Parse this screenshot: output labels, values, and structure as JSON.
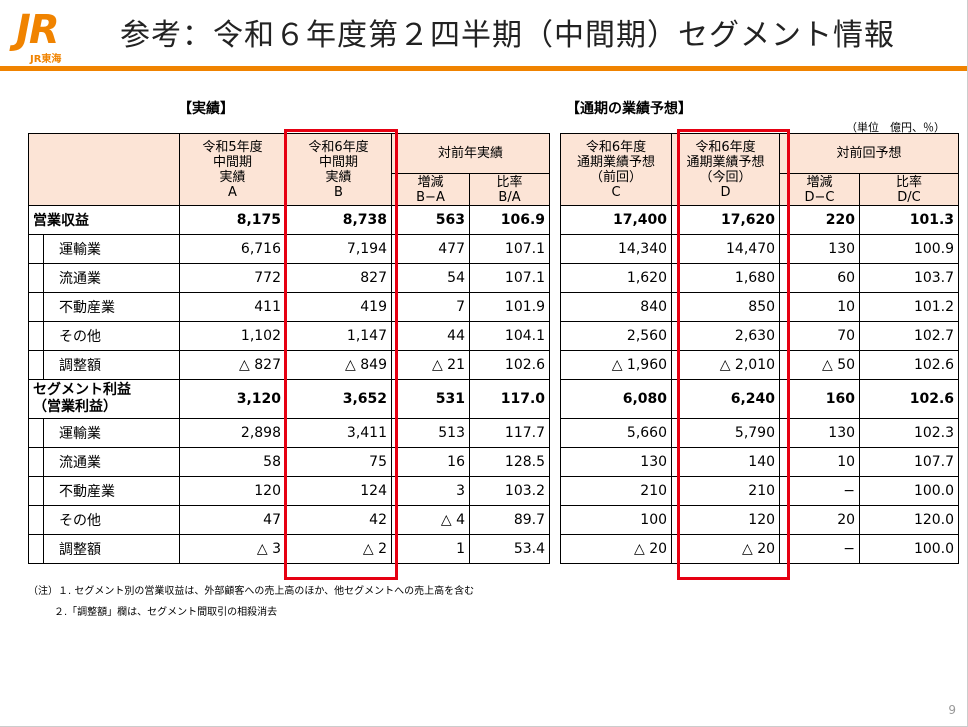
{
  "header": {
    "logo_text": "JR",
    "logo_sub": "JR東海",
    "title": "参考：令和６年度第２四半期（中間期）セグメント情報"
  },
  "actual": {
    "label": "【実績】",
    "head": {
      "col1": "令和5年度\n中間期\n実績\nA",
      "col2": "令和6年度\n中間期\n実績\nB",
      "yoy": "対前年実績",
      "diff": "増減\nB−A",
      "ratio": "比率\nB/A"
    }
  },
  "forecast": {
    "label": "【通期の業績予想】",
    "unit": "（単位　億円、％）",
    "head": {
      "col1": "令和6年度\n通期業績予想\n（前回）\nC",
      "col2": "令和6年度\n通期業績予想\n（今回）\nD",
      "vs": "対前回予想",
      "diff": "増減\nD−C",
      "ratio": "比率\nD/C"
    }
  },
  "rows": [
    {
      "label": "営業収益",
      "bold": true,
      "a": "8,175",
      "b": "8,738",
      "ba": "563",
      "bar": "106.9",
      "c": "17,400",
      "d": "17,620",
      "dc": "220",
      "dcr": "101.3"
    },
    {
      "label": "運輸業",
      "a": "6,716",
      "b": "7,194",
      "ba": "477",
      "bar": "107.1",
      "c": "14,340",
      "d": "14,470",
      "dc": "130",
      "dcr": "100.9"
    },
    {
      "label": "流通業",
      "a": "772",
      "b": "827",
      "ba": "54",
      "bar": "107.1",
      "c": "1,620",
      "d": "1,680",
      "dc": "60",
      "dcr": "103.7"
    },
    {
      "label": "不動産業",
      "a": "411",
      "b": "419",
      "ba": "7",
      "bar": "101.9",
      "c": "840",
      "d": "850",
      "dc": "10",
      "dcr": "101.2"
    },
    {
      "label": "その他",
      "a": "1,102",
      "b": "1,147",
      "ba": "44",
      "bar": "104.1",
      "c": "2,560",
      "d": "2,630",
      "dc": "70",
      "dcr": "102.7"
    },
    {
      "label": "調整額",
      "a": "△ 827",
      "b": "△ 849",
      "ba": "△ 21",
      "bar": "102.6",
      "c": "△ 1,960",
      "d": "△ 2,010",
      "dc": "△ 50",
      "dcr": "102.6"
    },
    {
      "label": "セグメント利益\n（営業利益）",
      "bold": true,
      "a": "3,120",
      "b": "3,652",
      "ba": "531",
      "bar": "117.0",
      "c": "6,080",
      "d": "6,240",
      "dc": "160",
      "dcr": "102.6"
    },
    {
      "label": "運輸業",
      "a": "2,898",
      "b": "3,411",
      "ba": "513",
      "bar": "117.7",
      "c": "5,660",
      "d": "5,790",
      "dc": "130",
      "dcr": "102.3"
    },
    {
      "label": "流通業",
      "a": "58",
      "b": "75",
      "ba": "16",
      "bar": "128.5",
      "c": "130",
      "d": "140",
      "dc": "10",
      "dcr": "107.7"
    },
    {
      "label": "不動産業",
      "a": "120",
      "b": "124",
      "ba": "3",
      "bar": "103.2",
      "c": "210",
      "d": "210",
      "dc": "−",
      "dcr": "100.0"
    },
    {
      "label": "その他",
      "a": "47",
      "b": "42",
      "ba": "△ 4",
      "bar": "89.7",
      "c": "100",
      "d": "120",
      "dc": "20",
      "dcr": "120.0"
    },
    {
      "label": "調整額",
      "a": "△ 3",
      "b": "△ 2",
      "ba": "1",
      "bar": "53.4",
      "c": "△ 20",
      "d": "△ 20",
      "dc": "−",
      "dcr": "100.0"
    }
  ],
  "notes": [
    "（注）１. セグメント別の営業収益は、外部顧客への売上高のほか、他セグメントへの売上高を含む",
    "２.「調整額」欄は、セグメント間取引の相殺消去"
  ],
  "page_number": "9",
  "colors": {
    "accent": "#f08300",
    "header_fill": "#fce4d6",
    "highlight": "#e60012"
  }
}
